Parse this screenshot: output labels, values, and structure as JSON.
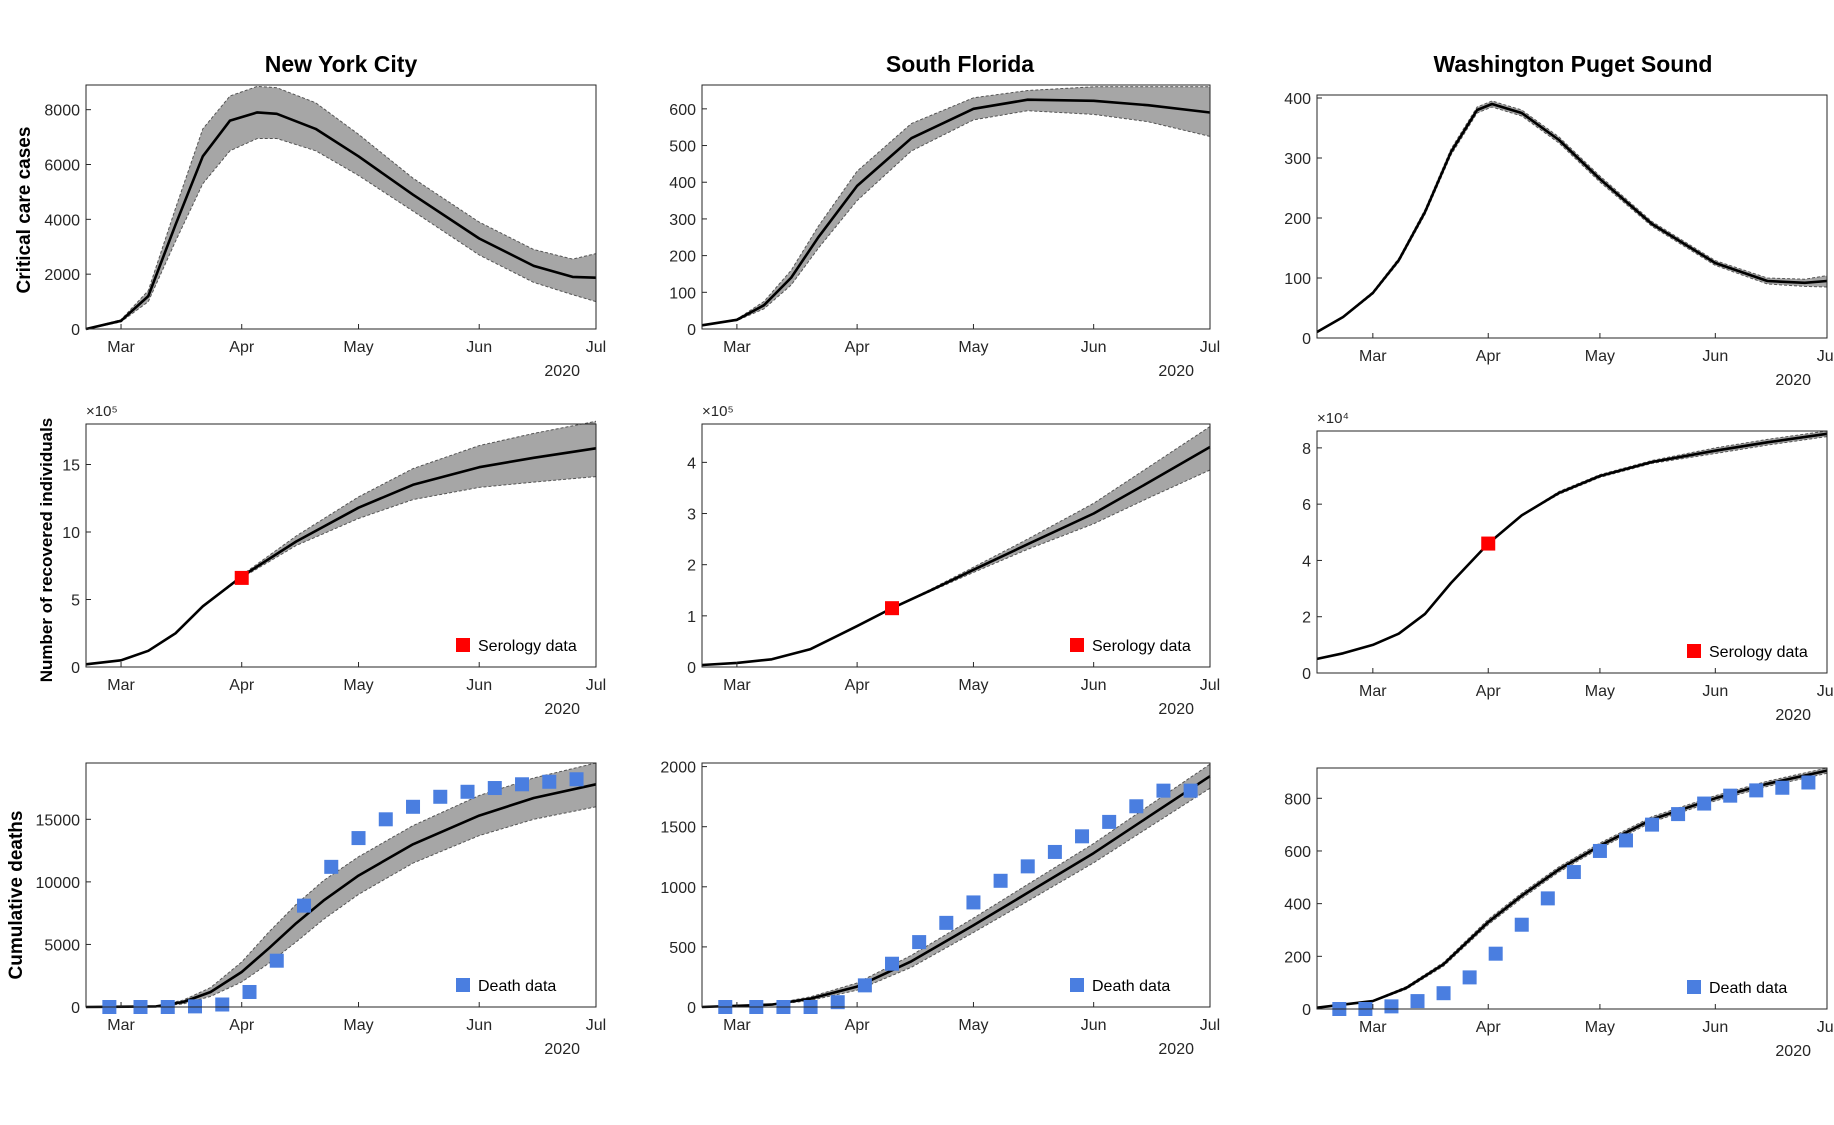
{
  "colors": {
    "band": "#a6a6a6",
    "band_edge": "#555555",
    "line": "#000000",
    "serology": "#ff0000",
    "deaths": "#4a7ee0",
    "axis": "#262626"
  },
  "x_axis": {
    "tick_dates": [
      "2020-03-01",
      "2020-04-01",
      "2020-05-01",
      "2020-06-01",
      "2020-07-01"
    ],
    "tick_labels": [
      "Mar",
      "Apr",
      "May",
      "Jun",
      "Jul"
    ],
    "year_label": "2020"
  },
  "columns": [
    {
      "title": "New York City"
    },
    {
      "title": "South Florida"
    },
    {
      "title": "Washington Puget Sound"
    }
  ],
  "rows": [
    {
      "label": "Critical care cases"
    },
    {
      "label": "Number of recovered individuals"
    },
    {
      "label": "Cumulative deaths"
    }
  ],
  "chart_data": [
    {
      "type": "line",
      "column": "New York City",
      "row": "Critical care cases",
      "xlim": [
        "2020-02-21",
        "2020-07-01"
      ],
      "ylim": [
        0,
        8900
      ],
      "yticks": [
        0,
        2000,
        4000,
        6000,
        8000
      ],
      "ytick_labels": [
        "0",
        "2000",
        "4000",
        "6000",
        "8000"
      ],
      "exponent_label": "",
      "series": [
        {
          "kind": "median_with_band",
          "dates": [
            "2020-02-21",
            "2020-03-01",
            "2020-03-08",
            "2020-03-15",
            "2020-03-22",
            "2020-03-29",
            "2020-04-05",
            "2020-04-10",
            "2020-04-20",
            "2020-05-01",
            "2020-05-15",
            "2020-06-01",
            "2020-06-15",
            "2020-06-25",
            "2020-07-01"
          ],
          "median": [
            0,
            300,
            1200,
            3800,
            6300,
            7600,
            7900,
            7850,
            7300,
            6300,
            4900,
            3300,
            2300,
            1900,
            1870
          ],
          "lower": [
            0,
            260,
            1000,
            3200,
            5300,
            6500,
            6950,
            6950,
            6500,
            5600,
            4300,
            2700,
            1700,
            1250,
            1000
          ],
          "upper": [
            0,
            340,
            1400,
            4400,
            7300,
            8500,
            8850,
            8800,
            8250,
            7100,
            5500,
            3900,
            2900,
            2550,
            2750
          ]
        }
      ]
    },
    {
      "type": "line",
      "column": "South Florida",
      "row": "Critical care cases",
      "xlim": [
        "2020-02-21",
        "2020-07-01"
      ],
      "ylim": [
        0,
        665
      ],
      "yticks": [
        0,
        100,
        200,
        300,
        400,
        500,
        600
      ],
      "ytick_labels": [
        "0",
        "100",
        "200",
        "300",
        "400",
        "500",
        "600"
      ],
      "exponent_label": "",
      "series": [
        {
          "kind": "median_with_band",
          "dates": [
            "2020-02-21",
            "2020-03-01",
            "2020-03-08",
            "2020-03-15",
            "2020-03-22",
            "2020-04-01",
            "2020-04-15",
            "2020-05-01",
            "2020-05-15",
            "2020-06-01",
            "2020-06-15",
            "2020-07-01"
          ],
          "median": [
            10,
            25,
            65,
            140,
            250,
            390,
            520,
            600,
            625,
            622,
            610,
            590
          ],
          "lower": [
            10,
            23,
            55,
            120,
            220,
            350,
            485,
            570,
            595,
            585,
            565,
            525
          ],
          "upper": [
            10,
            27,
            75,
            160,
            280,
            430,
            560,
            630,
            650,
            660,
            660,
            660
          ]
        }
      ]
    },
    {
      "type": "line",
      "column": "Washington Puget Sound",
      "row": "Critical care cases",
      "xlim": [
        "2020-02-15",
        "2020-07-01"
      ],
      "ylim": [
        0,
        405
      ],
      "yticks": [
        0,
        100,
        200,
        300,
        400
      ],
      "ytick_labels": [
        "0",
        "100",
        "200",
        "300",
        "400"
      ],
      "exponent_label": "",
      "series": [
        {
          "kind": "median_with_band",
          "dates": [
            "2020-02-15",
            "2020-02-22",
            "2020-03-01",
            "2020-03-08",
            "2020-03-15",
            "2020-03-22",
            "2020-03-29",
            "2020-04-02",
            "2020-04-10",
            "2020-04-20",
            "2020-05-01",
            "2020-05-15",
            "2020-06-01",
            "2020-06-15",
            "2020-06-25",
            "2020-07-01"
          ],
          "median": [
            10,
            35,
            75,
            130,
            210,
            310,
            380,
            390,
            375,
            330,
            265,
            190,
            125,
            95,
            92,
            95
          ],
          "lower": [
            10,
            34,
            73,
            127,
            206,
            305,
            375,
            385,
            370,
            325,
            260,
            186,
            121,
            90,
            86,
            85
          ],
          "upper": [
            10,
            36,
            77,
            133,
            214,
            315,
            385,
            395,
            380,
            335,
            270,
            194,
            129,
            100,
            98,
            104
          ]
        }
      ]
    },
    {
      "type": "line",
      "column": "New York City",
      "row": "Number of recovered individuals",
      "xlim": [
        "2020-02-21",
        "2020-07-01"
      ],
      "ylim": [
        0,
        18
      ],
      "yticks": [
        0,
        5,
        10,
        15
      ],
      "ytick_labels": [
        "0",
        "5",
        "10",
        "15"
      ],
      "exponent_label": "×10⁵",
      "series": [
        {
          "kind": "median_with_band",
          "dates": [
            "2020-02-21",
            "2020-03-01",
            "2020-03-08",
            "2020-03-15",
            "2020-03-22",
            "2020-04-01",
            "2020-04-15",
            "2020-05-01",
            "2020-05-15",
            "2020-06-01",
            "2020-06-15",
            "2020-07-01"
          ],
          "median": [
            0.2,
            0.5,
            1.2,
            2.5,
            4.5,
            6.7,
            9.3,
            11.8,
            13.5,
            14.8,
            15.5,
            16.2
          ],
          "lower": [
            0.2,
            0.5,
            1.2,
            2.5,
            4.5,
            6.6,
            9.0,
            11.0,
            12.4,
            13.3,
            13.7,
            14.1
          ],
          "upper": [
            0.2,
            0.5,
            1.2,
            2.5,
            4.5,
            6.8,
            9.7,
            12.6,
            14.7,
            16.4,
            17.3,
            18.2
          ]
        },
        {
          "kind": "point",
          "name": "Serology data",
          "dates": [
            "2020-04-01"
          ],
          "values": [
            6.6
          ]
        }
      ]
    },
    {
      "type": "line",
      "column": "South Florida",
      "row": "Number of recovered individuals",
      "xlim": [
        "2020-02-21",
        "2020-07-01"
      ],
      "ylim": [
        0,
        4.75
      ],
      "yticks": [
        0,
        1,
        2,
        3,
        4
      ],
      "ytick_labels": [
        "0",
        "1",
        "2",
        "3",
        "4"
      ],
      "exponent_label": "×10⁵",
      "series": [
        {
          "kind": "median_with_band",
          "dates": [
            "2020-02-21",
            "2020-03-01",
            "2020-03-10",
            "2020-03-20",
            "2020-04-01",
            "2020-04-10",
            "2020-04-20",
            "2020-05-01",
            "2020-05-15",
            "2020-06-01",
            "2020-06-15",
            "2020-07-01"
          ],
          "median": [
            0.04,
            0.08,
            0.15,
            0.35,
            0.8,
            1.15,
            1.5,
            1.9,
            2.4,
            3.0,
            3.6,
            4.3
          ],
          "lower": [
            0.04,
            0.08,
            0.15,
            0.35,
            0.8,
            1.15,
            1.48,
            1.85,
            2.3,
            2.8,
            3.3,
            3.85
          ],
          "upper": [
            0.04,
            0.08,
            0.15,
            0.35,
            0.8,
            1.15,
            1.52,
            1.95,
            2.5,
            3.2,
            3.9,
            4.7
          ]
        },
        {
          "kind": "point",
          "name": "Serology data",
          "dates": [
            "2020-04-10"
          ],
          "values": [
            1.15
          ]
        }
      ]
    },
    {
      "type": "line",
      "column": "Washington Puget Sound",
      "row": "Number of recovered individuals",
      "xlim": [
        "2020-02-15",
        "2020-07-01"
      ],
      "ylim": [
        0,
        8.6
      ],
      "yticks": [
        0,
        2,
        4,
        6,
        8
      ],
      "ytick_labels": [
        "0",
        "2",
        "4",
        "6",
        "8"
      ],
      "exponent_label": "×10⁴",
      "series": [
        {
          "kind": "median_with_band",
          "dates": [
            "2020-02-15",
            "2020-02-22",
            "2020-03-01",
            "2020-03-08",
            "2020-03-15",
            "2020-03-22",
            "2020-04-01",
            "2020-04-10",
            "2020-04-20",
            "2020-05-01",
            "2020-05-15",
            "2020-06-01",
            "2020-06-15",
            "2020-07-01"
          ],
          "median": [
            0.5,
            0.7,
            1.0,
            1.4,
            2.1,
            3.2,
            4.6,
            5.6,
            6.4,
            7.0,
            7.5,
            7.9,
            8.2,
            8.5
          ],
          "lower": [
            0.5,
            0.7,
            1.0,
            1.4,
            2.1,
            3.2,
            4.6,
            5.6,
            6.35,
            6.95,
            7.45,
            7.8,
            8.1,
            8.4
          ],
          "upper": [
            0.5,
            0.7,
            1.0,
            1.4,
            2.1,
            3.2,
            4.6,
            5.6,
            6.45,
            7.05,
            7.55,
            8.0,
            8.3,
            8.6
          ]
        },
        {
          "kind": "point",
          "name": "Serology data",
          "dates": [
            "2020-04-01"
          ],
          "values": [
            4.6
          ]
        }
      ]
    },
    {
      "type": "line",
      "column": "New York City",
      "row": "Cumulative deaths",
      "xlim": [
        "2020-02-21",
        "2020-07-01"
      ],
      "ylim": [
        0,
        19500
      ],
      "yticks": [
        0,
        5000,
        10000,
        15000
      ],
      "ytick_labels": [
        "0",
        "5000",
        "10000",
        "15000"
      ],
      "exponent_label": "",
      "series": [
        {
          "kind": "median_with_band",
          "dates": [
            "2020-02-21",
            "2020-03-10",
            "2020-03-17",
            "2020-03-24",
            "2020-04-01",
            "2020-04-08",
            "2020-04-15",
            "2020-04-22",
            "2020-05-01",
            "2020-05-15",
            "2020-06-01",
            "2020-06-15",
            "2020-07-01"
          ],
          "median": [
            0,
            50,
            400,
            1200,
            2800,
            4700,
            6700,
            8500,
            10500,
            13000,
            15300,
            16700,
            17800
          ],
          "lower": [
            0,
            30,
            250,
            850,
            2000,
            3500,
            5200,
            7000,
            9000,
            11500,
            13700,
            15000,
            16000
          ],
          "upper": [
            0,
            70,
            550,
            1550,
            3600,
            6000,
            8200,
            10100,
            12000,
            14500,
            16900,
            18300,
            19500
          ]
        },
        {
          "kind": "points",
          "name": "Death data",
          "dates": [
            "2020-02-27",
            "2020-03-06",
            "2020-03-13",
            "2020-03-20",
            "2020-03-27",
            "2020-04-03",
            "2020-04-10",
            "2020-04-17",
            "2020-04-24",
            "2020-05-01",
            "2020-05-08",
            "2020-05-15",
            "2020-05-22",
            "2020-05-29",
            "2020-06-05",
            "2020-06-12",
            "2020-06-19",
            "2020-06-26"
          ],
          "values": [
            0,
            0,
            0,
            50,
            200,
            1200,
            3700,
            8100,
            11200,
            13500,
            15000,
            16000,
            16800,
            17200,
            17500,
            17800,
            18000,
            18200
          ]
        }
      ]
    },
    {
      "type": "line",
      "column": "South Florida",
      "row": "Cumulative deaths",
      "xlim": [
        "2020-02-21",
        "2020-07-01"
      ],
      "ylim": [
        0,
        2030
      ],
      "yticks": [
        0,
        500,
        1000,
        1500,
        2000
      ],
      "ytick_labels": [
        "0",
        "500",
        "1000",
        "1500",
        "2000"
      ],
      "exponent_label": "",
      "series": [
        {
          "kind": "median_with_band",
          "dates": [
            "2020-02-21",
            "2020-03-10",
            "2020-03-20",
            "2020-04-01",
            "2020-04-15",
            "2020-05-01",
            "2020-05-15",
            "2020-06-01",
            "2020-06-15",
            "2020-07-01"
          ],
          "median": [
            0,
            20,
            70,
            170,
            380,
            680,
            950,
            1280,
            1580,
            1920
          ],
          "lower": [
            0,
            15,
            55,
            140,
            330,
            620,
            880,
            1200,
            1490,
            1820
          ],
          "upper": [
            0,
            25,
            85,
            200,
            430,
            740,
            1020,
            1360,
            1670,
            2020
          ]
        },
        {
          "kind": "points",
          "name": "Death data",
          "dates": [
            "2020-02-27",
            "2020-03-06",
            "2020-03-13",
            "2020-03-20",
            "2020-03-27",
            "2020-04-03",
            "2020-04-10",
            "2020-04-17",
            "2020-04-24",
            "2020-05-01",
            "2020-05-08",
            "2020-05-15",
            "2020-05-22",
            "2020-05-29",
            "2020-06-05",
            "2020-06-12",
            "2020-06-19",
            "2020-06-26"
          ],
          "values": [
            0,
            0,
            0,
            0,
            40,
            180,
            360,
            540,
            700,
            870,
            1050,
            1170,
            1290,
            1420,
            1540,
            1670,
            1800,
            1800
          ]
        }
      ]
    },
    {
      "type": "line",
      "column": "Washington Puget Sound",
      "row": "Cumulative deaths",
      "xlim": [
        "2020-02-15",
        "2020-07-01"
      ],
      "ylim": [
        0,
        915
      ],
      "yticks": [
        0,
        200,
        400,
        600,
        800
      ],
      "ytick_labels": [
        "0",
        "200",
        "400",
        "600",
        "800"
      ],
      "exponent_label": "",
      "series": [
        {
          "kind": "median_with_band",
          "dates": [
            "2020-02-15",
            "2020-03-01",
            "2020-03-10",
            "2020-03-20",
            "2020-04-01",
            "2020-04-10",
            "2020-04-20",
            "2020-05-01",
            "2020-05-15",
            "2020-06-01",
            "2020-06-15",
            "2020-07-01"
          ],
          "median": [
            5,
            30,
            80,
            170,
            330,
            430,
            530,
            620,
            720,
            800,
            855,
            905
          ],
          "lower": [
            5,
            28,
            75,
            163,
            320,
            420,
            520,
            610,
            710,
            790,
            845,
            895
          ],
          "upper": [
            5,
            32,
            85,
            177,
            340,
            440,
            540,
            630,
            730,
            810,
            865,
            915
          ]
        },
        {
          "kind": "points",
          "name": "Death data",
          "dates": [
            "2020-02-21",
            "2020-02-28",
            "2020-03-06",
            "2020-03-13",
            "2020-03-20",
            "2020-03-27",
            "2020-04-03",
            "2020-04-10",
            "2020-04-17",
            "2020-04-24",
            "2020-05-01",
            "2020-05-08",
            "2020-05-15",
            "2020-05-22",
            "2020-05-29",
            "2020-06-05",
            "2020-06-12",
            "2020-06-19",
            "2020-06-26"
          ],
          "values": [
            0,
            0,
            10,
            30,
            60,
            120,
            210,
            320,
            420,
            520,
            600,
            640,
            700,
            740,
            780,
            810,
            830,
            840,
            860
          ]
        }
      ]
    }
  ]
}
